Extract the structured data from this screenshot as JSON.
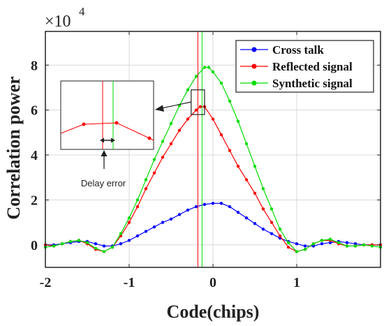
{
  "chart_data": {
    "type": "line",
    "xlabel": "Code(chips)",
    "ylabel": "Correlation power",
    "y_multiplier_label": "×10",
    "y_multiplier_exponent": "4",
    "xlim": [
      -2,
      2
    ],
    "ylim": [
      -1,
      9.5
    ],
    "x_ticks": [
      -2,
      -1,
      0,
      1
    ],
    "x_tick_labels": [
      "-2",
      "-1",
      "0",
      "1"
    ],
    "y_ticks": [
      0,
      2,
      4,
      6,
      8
    ],
    "y_tick_labels": [
      "0",
      "2",
      "4",
      "6",
      "8"
    ],
    "grid": true,
    "legend_position": "top-right",
    "series": [
      {
        "name": "Cross talk",
        "color": "#0000ff",
        "points": [
          [
            -2.0,
            0.0
          ],
          [
            -1.9,
            0.0
          ],
          [
            -1.8,
            0.05
          ],
          [
            -1.7,
            0.1
          ],
          [
            -1.6,
            0.15
          ],
          [
            -1.5,
            0.15
          ],
          [
            -1.4,
            0.05
          ],
          [
            -1.3,
            -0.05
          ],
          [
            -1.2,
            -0.05
          ],
          [
            -1.1,
            0.05
          ],
          [
            -1.0,
            0.2
          ],
          [
            -0.9,
            0.4
          ],
          [
            -0.8,
            0.6
          ],
          [
            -0.7,
            0.8
          ],
          [
            -0.6,
            1.0
          ],
          [
            -0.5,
            1.15
          ],
          [
            -0.4,
            1.35
          ],
          [
            -0.3,
            1.55
          ],
          [
            -0.2,
            1.7
          ],
          [
            -0.1,
            1.8
          ],
          [
            0.0,
            1.85
          ],
          [
            0.1,
            1.85
          ],
          [
            0.2,
            1.7
          ],
          [
            0.3,
            1.45
          ],
          [
            0.4,
            1.2
          ],
          [
            0.5,
            0.95
          ],
          [
            0.6,
            0.7
          ],
          [
            0.7,
            0.5
          ],
          [
            0.8,
            0.3
          ],
          [
            0.9,
            0.15
          ],
          [
            1.0,
            0.05
          ],
          [
            1.1,
            -0.05
          ],
          [
            1.2,
            -0.05
          ],
          [
            1.3,
            0.05
          ],
          [
            1.4,
            0.1
          ],
          [
            1.5,
            0.15
          ],
          [
            1.6,
            0.1
          ],
          [
            1.7,
            0.05
          ],
          [
            1.8,
            0.0
          ],
          [
            1.9,
            0.0
          ],
          [
            2.0,
            0.0
          ]
        ]
      },
      {
        "name": "Reflected signal",
        "color": "#ff0000",
        "points": [
          [
            -2.0,
            0.0
          ],
          [
            -1.9,
            -0.05
          ],
          [
            -1.8,
            0.05
          ],
          [
            -1.7,
            0.15
          ],
          [
            -1.6,
            0.2
          ],
          [
            -1.5,
            0.05
          ],
          [
            -1.4,
            -0.2
          ],
          [
            -1.3,
            -0.3
          ],
          [
            -1.2,
            -0.1
          ],
          [
            -1.1,
            0.4
          ],
          [
            -1.0,
            1.0
          ],
          [
            -0.9,
            1.7
          ],
          [
            -0.8,
            2.5
          ],
          [
            -0.7,
            3.2
          ],
          [
            -0.6,
            3.9
          ],
          [
            -0.5,
            4.5
          ],
          [
            -0.4,
            5.1
          ],
          [
            -0.3,
            5.6
          ],
          [
            -0.2,
            6.0
          ],
          [
            -0.15,
            6.15
          ],
          [
            -0.1,
            6.15
          ],
          [
            0.0,
            5.6
          ],
          [
            0.1,
            4.9
          ],
          [
            0.2,
            4.2
          ],
          [
            0.3,
            3.5
          ],
          [
            0.4,
            2.9
          ],
          [
            0.5,
            2.3
          ],
          [
            0.6,
            1.6
          ],
          [
            0.7,
            1.0
          ],
          [
            0.8,
            0.4
          ],
          [
            0.9,
            -0.1
          ],
          [
            1.0,
            -0.3
          ],
          [
            1.1,
            -0.2
          ],
          [
            1.2,
            0.05
          ],
          [
            1.3,
            0.2
          ],
          [
            1.4,
            0.2
          ],
          [
            1.5,
            0.05
          ],
          [
            1.6,
            -0.05
          ],
          [
            1.7,
            -0.05
          ],
          [
            1.8,
            0.0
          ],
          [
            1.9,
            0.0
          ],
          [
            2.0,
            0.0
          ]
        ]
      },
      {
        "name": "Synthetic signal",
        "color": "#00dd00",
        "points": [
          [
            -2.0,
            -0.1
          ],
          [
            -1.9,
            -0.05
          ],
          [
            -1.8,
            0.05
          ],
          [
            -1.7,
            0.15
          ],
          [
            -1.6,
            0.2
          ],
          [
            -1.5,
            0.1
          ],
          [
            -1.4,
            -0.15
          ],
          [
            -1.3,
            -0.3
          ],
          [
            -1.2,
            -0.1
          ],
          [
            -1.1,
            0.5
          ],
          [
            -1.0,
            1.2
          ],
          [
            -0.9,
            2.0
          ],
          [
            -0.8,
            2.9
          ],
          [
            -0.7,
            3.8
          ],
          [
            -0.6,
            4.6
          ],
          [
            -0.5,
            5.4
          ],
          [
            -0.4,
            6.2
          ],
          [
            -0.3,
            6.9
          ],
          [
            -0.2,
            7.5
          ],
          [
            -0.1,
            7.9
          ],
          [
            -0.05,
            7.9
          ],
          [
            0.0,
            7.7
          ],
          [
            0.1,
            7.2
          ],
          [
            0.2,
            6.4
          ],
          [
            0.3,
            5.5
          ],
          [
            0.4,
            4.5
          ],
          [
            0.5,
            3.5
          ],
          [
            0.6,
            2.5
          ],
          [
            0.7,
            1.6
          ],
          [
            0.8,
            0.7
          ],
          [
            0.9,
            0.1
          ],
          [
            1.0,
            -0.3
          ],
          [
            1.1,
            -0.2
          ],
          [
            1.2,
            0.05
          ],
          [
            1.3,
            0.2
          ],
          [
            1.4,
            0.25
          ],
          [
            1.5,
            0.1
          ],
          [
            1.6,
            -0.05
          ],
          [
            1.7,
            -0.05
          ],
          [
            1.8,
            0.0
          ],
          [
            1.9,
            -0.05
          ],
          [
            2.0,
            -0.1
          ]
        ]
      }
    ],
    "vertical_lines": [
      {
        "x": -0.18,
        "color": "#ff0000"
      },
      {
        "x": -0.13,
        "color": "#00dd00"
      }
    ],
    "inset": {
      "markers": [
        "-0.21",
        "-0.11",
        "-0.01"
      ],
      "highlight_box": {
        "x": [
          -0.26,
          -0.1
        ],
        "y": [
          5.8,
          6.9
        ]
      }
    },
    "annotations": [
      {
        "text": "Delay error"
      }
    ]
  }
}
